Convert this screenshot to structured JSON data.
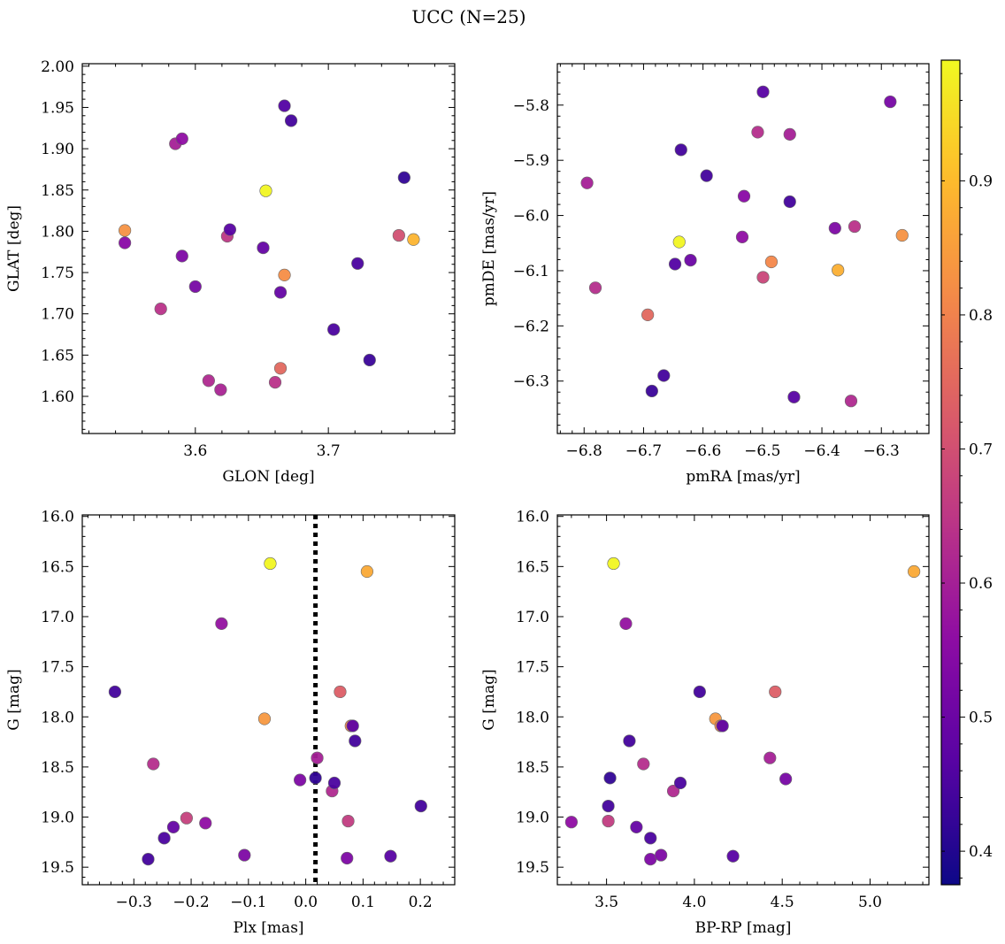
{
  "figure": {
    "title": "UCC (N=25)"
  },
  "colorbar": {
    "min": 0.375,
    "max": 0.99,
    "ticks": [
      0.4,
      0.5,
      0.6,
      0.7,
      0.8,
      0.9
    ],
    "tick_labels": [
      "0.4",
      "0.5",
      "0.6",
      "0.7",
      "0.8",
      "0.9"
    ],
    "colormap": "plasma"
  },
  "chart_data": [
    {
      "type": "scatter",
      "xlabel": "GLON [deg]",
      "ylabel": "GLAT [deg]",
      "xlim": [
        3.515,
        3.795
      ],
      "ylim": [
        1.555,
        2.003
      ],
      "xticks": [
        3.6,
        3.7
      ],
      "xtick_labels": [
        "3.6",
        "3.7"
      ],
      "yticks": [
        1.6,
        1.65,
        1.7,
        1.75,
        1.8,
        1.85,
        1.9,
        1.95,
        2.0
      ],
      "ytick_labels": [
        "1.60",
        "1.65",
        "1.70",
        "1.75",
        "1.80",
        "1.85",
        "1.90",
        "1.95",
        "2.00"
      ],
      "points": [
        {
          "x": 3.547,
          "y": 1.801,
          "c": 0.83
        },
        {
          "x": 3.547,
          "y": 1.786,
          "c": 0.55
        },
        {
          "x": 3.585,
          "y": 1.906,
          "c": 0.6
        },
        {
          "x": 3.59,
          "y": 1.912,
          "c": 0.56
        },
        {
          "x": 3.59,
          "y": 1.77,
          "c": 0.53
        },
        {
          "x": 3.574,
          "y": 1.706,
          "c": 0.64
        },
        {
          "x": 3.6,
          "y": 1.733,
          "c": 0.52
        },
        {
          "x": 3.61,
          "y": 1.619,
          "c": 0.62
        },
        {
          "x": 3.619,
          "y": 1.608,
          "c": 0.61
        },
        {
          "x": 3.624,
          "y": 1.794,
          "c": 0.65
        },
        {
          "x": 3.626,
          "y": 1.802,
          "c": 0.47
        },
        {
          "x": 3.651,
          "y": 1.78,
          "c": 0.49
        },
        {
          "x": 3.653,
          "y": 1.849,
          "c": 0.985
        },
        {
          "x": 3.66,
          "y": 1.617,
          "c": 0.64
        },
        {
          "x": 3.664,
          "y": 1.634,
          "c": 0.75
        },
        {
          "x": 3.664,
          "y": 1.726,
          "c": 0.49
        },
        {
          "x": 3.667,
          "y": 1.747,
          "c": 0.82
        },
        {
          "x": 3.667,
          "y": 1.952,
          "c": 0.46
        },
        {
          "x": 3.672,
          "y": 1.934,
          "c": 0.44
        },
        {
          "x": 3.704,
          "y": 1.681,
          "c": 0.45
        },
        {
          "x": 3.722,
          "y": 1.761,
          "c": 0.45
        },
        {
          "x": 3.731,
          "y": 1.644,
          "c": 0.43
        },
        {
          "x": 3.753,
          "y": 1.795,
          "c": 0.7
        },
        {
          "x": 3.757,
          "y": 1.865,
          "c": 0.42
        },
        {
          "x": 3.764,
          "y": 1.79,
          "c": 0.89
        }
      ]
    },
    {
      "type": "scatter",
      "xlabel": "pmRA [mas/yr]",
      "ylabel": "pmDE [mas/yr]",
      "xlim": [
        -6.845,
        -6.22
      ],
      "ylim": [
        -6.395,
        -5.725
      ],
      "xticks": [
        -6.8,
        -6.7,
        -6.6,
        -6.5,
        -6.4,
        -6.3
      ],
      "xtick_labels": [
        "−6.8",
        "−6.7",
        "−6.6",
        "−6.5",
        "−6.4",
        "−6.3"
      ],
      "yticks": [
        -6.3,
        -6.2,
        -6.1,
        -6.0,
        -5.9,
        -5.8
      ],
      "ytick_labels": [
        "−6.3",
        "−6.2",
        "−6.1",
        "−6.0",
        "−5.9",
        "−5.8"
      ],
      "points": [
        {
          "x": -6.795,
          "y": -5.941,
          "c": 0.6
        },
        {
          "x": -6.781,
          "y": -6.131,
          "c": 0.63
        },
        {
          "x": -6.693,
          "y": -6.18,
          "c": 0.75
        },
        {
          "x": -6.686,
          "y": -6.318,
          "c": 0.43
        },
        {
          "x": -6.666,
          "y": -6.29,
          "c": 0.44
        },
        {
          "x": -6.647,
          "y": -6.088,
          "c": 0.46
        },
        {
          "x": -6.64,
          "y": -6.048,
          "c": 0.985
        },
        {
          "x": -6.637,
          "y": -5.881,
          "c": 0.44
        },
        {
          "x": -6.621,
          "y": -6.081,
          "c": 0.5
        },
        {
          "x": -6.594,
          "y": -5.928,
          "c": 0.44
        },
        {
          "x": -6.534,
          "y": -6.039,
          "c": 0.56
        },
        {
          "x": -6.531,
          "y": -5.965,
          "c": 0.55
        },
        {
          "x": -6.508,
          "y": -5.849,
          "c": 0.63
        },
        {
          "x": -6.499,
          "y": -5.776,
          "c": 0.47
        },
        {
          "x": -6.499,
          "y": -6.112,
          "c": 0.68
        },
        {
          "x": -6.485,
          "y": -6.084,
          "c": 0.81
        },
        {
          "x": -6.454,
          "y": -5.853,
          "c": 0.6
        },
        {
          "x": -6.454,
          "y": -5.975,
          "c": 0.44
        },
        {
          "x": -6.447,
          "y": -6.329,
          "c": 0.47
        },
        {
          "x": -6.378,
          "y": -6.023,
          "c": 0.53
        },
        {
          "x": -6.373,
          "y": -6.099,
          "c": 0.88
        },
        {
          "x": -6.351,
          "y": -6.336,
          "c": 0.62
        },
        {
          "x": -6.345,
          "y": -6.02,
          "c": 0.64
        },
        {
          "x": -6.285,
          "y": -5.794,
          "c": 0.52
        },
        {
          "x": -6.265,
          "y": -6.036,
          "c": 0.83
        }
      ]
    },
    {
      "type": "scatter",
      "xlabel": "Plx [mas]",
      "ylabel": "G [mag]",
      "xlim": [
        -0.39,
        0.26
      ],
      "ylim": [
        19.675,
        15.985
      ],
      "xticks": [
        -0.3,
        -0.2,
        -0.1,
        0.0,
        0.1,
        0.2
      ],
      "xtick_labels": [
        "−0.3",
        "−0.2",
        "−0.1",
        "0.0",
        "0.1",
        "0.2"
      ],
      "yticks": [
        16.0,
        16.5,
        17.0,
        17.5,
        18.0,
        18.5,
        19.0,
        19.5
      ],
      "ytick_labels": [
        "16.0",
        "16.5",
        "17.0",
        "17.5",
        "18.0",
        "18.5",
        "19.0",
        "19.5"
      ],
      "vline": {
        "x": 0.017,
        "style": "dotted"
      },
      "points": [
        {
          "x": -0.333,
          "y": 17.75,
          "c": 0.44
        },
        {
          "x": -0.275,
          "y": 19.42,
          "c": 0.44
        },
        {
          "x": -0.266,
          "y": 18.47,
          "c": 0.63
        },
        {
          "x": -0.247,
          "y": 19.21,
          "c": 0.45
        },
        {
          "x": -0.231,
          "y": 19.1,
          "c": 0.49
        },
        {
          "x": -0.208,
          "y": 19.01,
          "c": 0.67
        },
        {
          "x": -0.175,
          "y": 19.06,
          "c": 0.56
        },
        {
          "x": -0.147,
          "y": 17.07,
          "c": 0.57
        },
        {
          "x": -0.107,
          "y": 19.38,
          "c": 0.53
        },
        {
          "x": -0.062,
          "y": 16.47,
          "c": 0.985
        },
        {
          "x": -0.072,
          "y": 18.02,
          "c": 0.84
        },
        {
          "x": -0.01,
          "y": 18.63,
          "c": 0.53
        },
        {
          "x": 0.017,
          "y": 18.61,
          "c": 0.42
        },
        {
          "x": 0.02,
          "y": 18.41,
          "c": 0.6
        },
        {
          "x": 0.046,
          "y": 18.74,
          "c": 0.62
        },
        {
          "x": 0.05,
          "y": 18.66,
          "c": 0.45
        },
        {
          "x": 0.06,
          "y": 17.75,
          "c": 0.73
        },
        {
          "x": 0.072,
          "y": 19.41,
          "c": 0.53
        },
        {
          "x": 0.074,
          "y": 19.04,
          "c": 0.66
        },
        {
          "x": 0.079,
          "y": 18.09,
          "c": 0.8
        },
        {
          "x": 0.082,
          "y": 18.09,
          "c": 0.48
        },
        {
          "x": 0.086,
          "y": 18.24,
          "c": 0.44
        },
        {
          "x": 0.107,
          "y": 16.55,
          "c": 0.87
        },
        {
          "x": 0.148,
          "y": 19.39,
          "c": 0.47
        },
        {
          "x": 0.201,
          "y": 18.89,
          "c": 0.44
        }
      ]
    },
    {
      "type": "scatter",
      "xlabel": "BP-RP [mag]",
      "ylabel": "G [mag]",
      "xlim": [
        3.22,
        5.335
      ],
      "ylim": [
        19.675,
        15.985
      ],
      "xticks": [
        3.5,
        4.0,
        4.5,
        5.0
      ],
      "xtick_labels": [
        "3.5",
        "4.0",
        "4.5",
        "5.0"
      ],
      "yticks": [
        16.0,
        16.5,
        17.0,
        17.5,
        18.0,
        18.5,
        19.0,
        19.5
      ],
      "ytick_labels": [
        "16.0",
        "16.5",
        "17.0",
        "17.5",
        "18.0",
        "18.5",
        "19.0",
        "19.5"
      ],
      "points": [
        {
          "x": 3.3,
          "y": 19.05,
          "c": 0.56
        },
        {
          "x": 3.51,
          "y": 19.04,
          "c": 0.66
        },
        {
          "x": 3.52,
          "y": 18.61,
          "c": 0.42
        },
        {
          "x": 3.51,
          "y": 18.89,
          "c": 0.44
        },
        {
          "x": 3.54,
          "y": 16.47,
          "c": 0.985
        },
        {
          "x": 3.61,
          "y": 17.07,
          "c": 0.57
        },
        {
          "x": 3.63,
          "y": 18.24,
          "c": 0.44
        },
        {
          "x": 3.67,
          "y": 19.1,
          "c": 0.49
        },
        {
          "x": 3.71,
          "y": 18.47,
          "c": 0.63
        },
        {
          "x": 3.75,
          "y": 19.21,
          "c": 0.45
        },
        {
          "x": 3.75,
          "y": 19.42,
          "c": 0.53
        },
        {
          "x": 3.81,
          "y": 19.38,
          "c": 0.53
        },
        {
          "x": 3.88,
          "y": 18.74,
          "c": 0.62
        },
        {
          "x": 3.92,
          "y": 18.66,
          "c": 0.45
        },
        {
          "x": 4.03,
          "y": 17.75,
          "c": 0.44
        },
        {
          "x": 4.12,
          "y": 18.02,
          "c": 0.84
        },
        {
          "x": 4.15,
          "y": 18.09,
          "c": 0.8
        },
        {
          "x": 4.16,
          "y": 18.09,
          "c": 0.48
        },
        {
          "x": 4.22,
          "y": 19.39,
          "c": 0.47
        },
        {
          "x": 4.43,
          "y": 18.41,
          "c": 0.6
        },
        {
          "x": 4.46,
          "y": 17.75,
          "c": 0.73
        },
        {
          "x": 4.52,
          "y": 18.62,
          "c": 0.52
        },
        {
          "x": 5.25,
          "y": 16.55,
          "c": 0.87
        }
      ]
    }
  ]
}
